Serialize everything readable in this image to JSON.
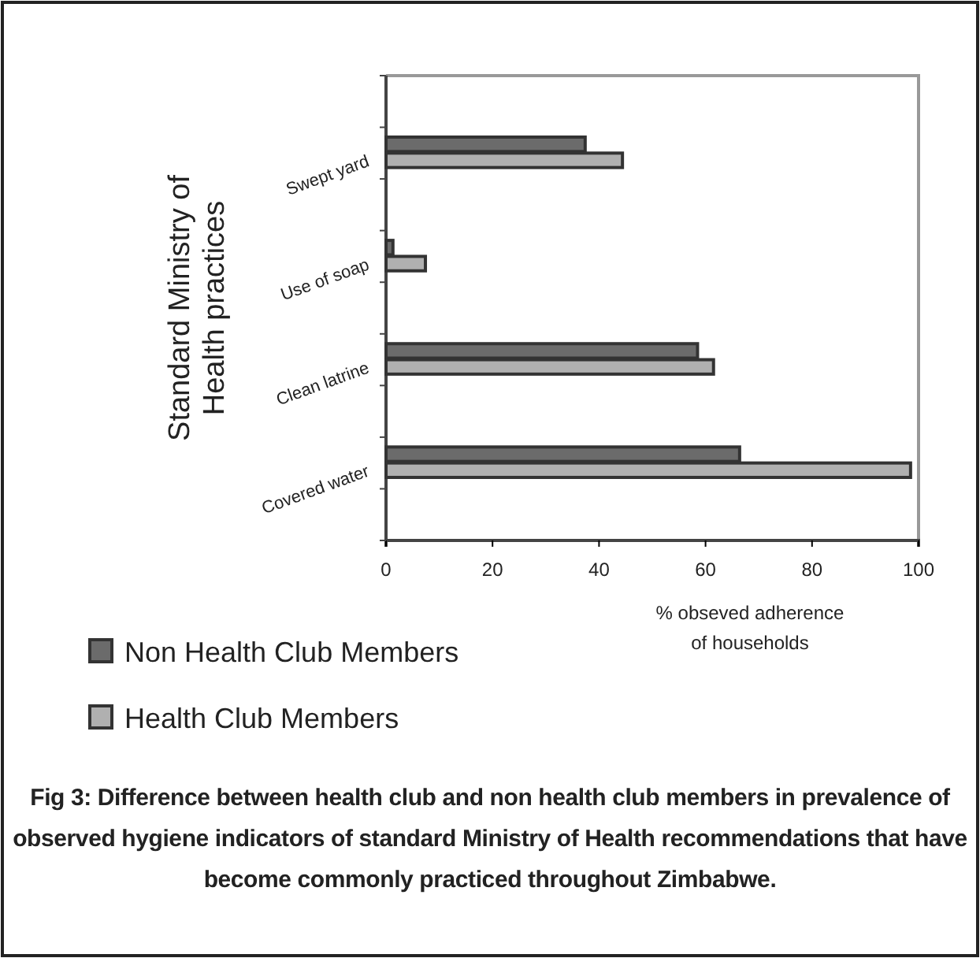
{
  "chart_data": {
    "type": "bar",
    "orientation": "horizontal",
    "categories": [
      "Swept yard",
      "Use of soap",
      "Clean latrine",
      "Covered water"
    ],
    "series": [
      {
        "name": "Non Health Club Members",
        "color": "#6b6b6b",
        "values": [
          37.4,
          1.3,
          58.5,
          66.4
        ]
      },
      {
        "name": "Health Club  Members",
        "color": "#b0b0b0",
        "values": [
          44.4,
          7.4,
          61.5,
          98.5
        ]
      }
    ],
    "xlim": [
      0,
      100
    ],
    "xticks": [
      0,
      20,
      40,
      60,
      80,
      100
    ],
    "xlabel": "% obseved adherence\nof households",
    "ylabel": "Standard Ministry of\nHealth  practices",
    "legend": "bottom left",
    "annotations": [
      "Fig 3: Difference between health club and non health club members in prevalence of observed hygiene indicators of standard Ministry of Health recommendations that have become commonly practiced throughout Zimbabwe."
    ]
  }
}
